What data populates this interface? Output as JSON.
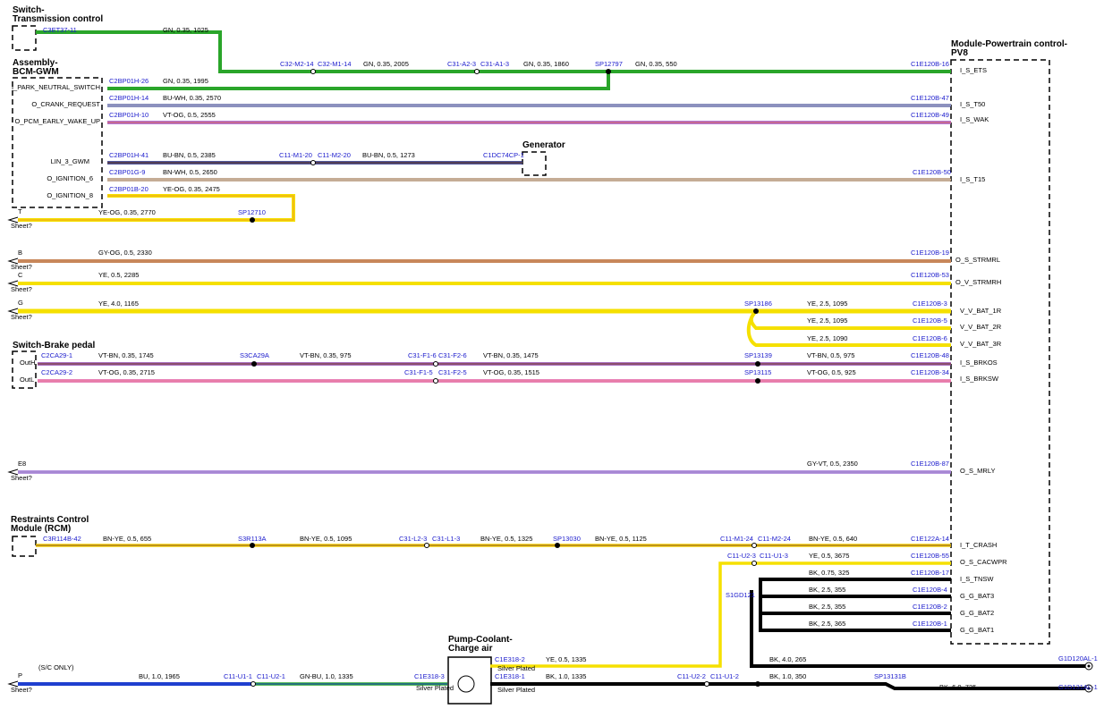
{
  "modules": [
    {
      "lines": [
        "Switch-",
        "Transmission control"
      ]
    },
    {
      "lines": [
        "Assembly-",
        "BCM-GWM"
      ]
    },
    {
      "lines": [
        "Module-Powertrain control-",
        "PV8"
      ]
    },
    {
      "lines": [
        "Generator"
      ]
    },
    {
      "lines": [
        "Switch-Brake pedal"
      ]
    },
    {
      "lines": [
        "Restraints Control",
        "Module (RCM)"
      ]
    },
    {
      "lines": [
        "Pump-Coolant-",
        "Charge air"
      ]
    }
  ],
  "pins": [
    "I_PARK_NEUTRAL_SWITCH",
    "O_CRANK_REQUEST",
    "O_PCM_EARLY_WAKE_UP",
    "LIN_3_GWM",
    "O_IGNITION_6",
    "O_IGNITION_8",
    "OutH",
    "OutL",
    "I_S_ETS",
    "I_S_T50",
    "I_S_WAK",
    "I_S_T15",
    "O_S_STRMRL",
    "O_V_STRMRH",
    "V_V_BAT_1R",
    "V_V_BAT_2R",
    "V_V_BAT_3R",
    "I_S_BRKOS",
    "I_S_BRKSW",
    "O_S_MRLY",
    "I_T_CRASH",
    "O_S_CACWPR",
    "I_S_TNSW",
    "G_G_BAT3",
    "G_G_BAT2",
    "G_G_BAT1"
  ],
  "connectors": [
    "C3ET37-11",
    "C32-M2-14",
    "C32-M1-14",
    "C31-A2-3",
    "C31-A1-3",
    "SP12797",
    "C1E120B-16",
    "C2BP01H-26",
    "C2BP01H-14",
    "C1E120B-47",
    "C2BP01H-10",
    "C1E120B-49",
    "C2BP01H-41",
    "C11-M1-20",
    "C11-M2-20",
    "C1DC74CP-1",
    "C2BP01G-9",
    "C1E120B-50",
    "C2BP01B-20",
    "SP12710",
    "C1E120B-19",
    "C1E120B-53",
    "SP13186",
    "C1E120B-3",
    "C1E120B-5",
    "C1E120B-6",
    "C2CA29-1",
    "S3CA29A",
    "C31-F1-6",
    "C31-F2-6",
    "SP13139",
    "C1E120B-48",
    "C2CA29-2",
    "C31-F1-5",
    "C31-F2-5",
    "SP13115",
    "C1E120B-34",
    "C1E120B-87",
    "C3R114B-42",
    "S3R113A",
    "C31-L2-3",
    "C31-L1-3",
    "SP13030",
    "C11-M1-24",
    "C11-M2-24",
    "C1E122A-14",
    "C11-U2-3",
    "C11-U1-3",
    "C1E120B-55",
    "C1E120B-17",
    "S1GD121",
    "C1E120B-4",
    "C1E120B-2",
    "C1E120B-1",
    "C1E318-2",
    "G1D120AL-1",
    "C11-U1-1",
    "C11-U2-1",
    "C1E318-3",
    "C1E318-1",
    "C11-U2-2",
    "C11-U1-2",
    "SP13131B",
    "G1D131AL-1"
  ],
  "wire_labels": [
    "GN, 0.35, 1025",
    "GN, 0.35, 2005",
    "GN, 0.35, 1860",
    "GN, 0.35, 550",
    "GN, 0.35, 1995",
    "BU-WH, 0.35, 2570",
    "VT-OG, 0.5, 2555",
    "BU-BN, 0.5, 2385",
    "BU-BN, 0.5, 1273",
    "BN-WH, 0.5, 2650",
    "YE-OG, 0.35, 2475",
    "YE-OG, 0.35, 2770",
    "GY-OG, 0.5, 2330",
    "YE, 0.5, 2285",
    "YE, 4.0, 1165",
    "YE, 2.5, 1095",
    "YE, 2.5, 1095",
    "YE, 2.5, 1090",
    "VT-BN, 0.35, 1745",
    "VT-BN, 0.35, 975",
    "VT-BN, 0.35, 1475",
    "VT-BN, 0.5, 975",
    "VT-OG, 0.35, 2715",
    "VT-OG, 0.35, 1515",
    "VT-OG, 0.5, 925",
    "GY-VT, 0.5, 2350",
    "BN-YE, 0.5, 655",
    "BN-YE, 0.5, 1095",
    "BN-YE, 0.5, 1325",
    "BN-YE, 0.5, 1125",
    "BN-YE, 0.5, 640",
    "YE, 0.5, 3675",
    "BK, 0.75, 325",
    "BK, 2.5, 355",
    "BK, 2.5, 355",
    "BK, 2.5, 365",
    "YE, 0.5, 1335",
    "BK, 4.0, 265",
    "BU, 1.0, 1965",
    "GN-BU, 1.0, 1335",
    "BK, 1.0, 1335",
    "BK, 1.0, 350",
    "BK, 6.0, 725"
  ],
  "sheets": [
    {
      "id": "T",
      "label": "Sheet?"
    },
    {
      "id": "B",
      "label": "Sheet?"
    },
    {
      "id": "C",
      "label": "Sheet?"
    },
    {
      "id": "G",
      "label": "Sheet?"
    },
    {
      "id": "E8",
      "label": "Sheet?"
    },
    {
      "id": "P",
      "label": "Sheet?"
    }
  ],
  "notes": [
    "(S/C ONLY)",
    "Silver Plated",
    "Silver Plated",
    "Silver Plated"
  ]
}
